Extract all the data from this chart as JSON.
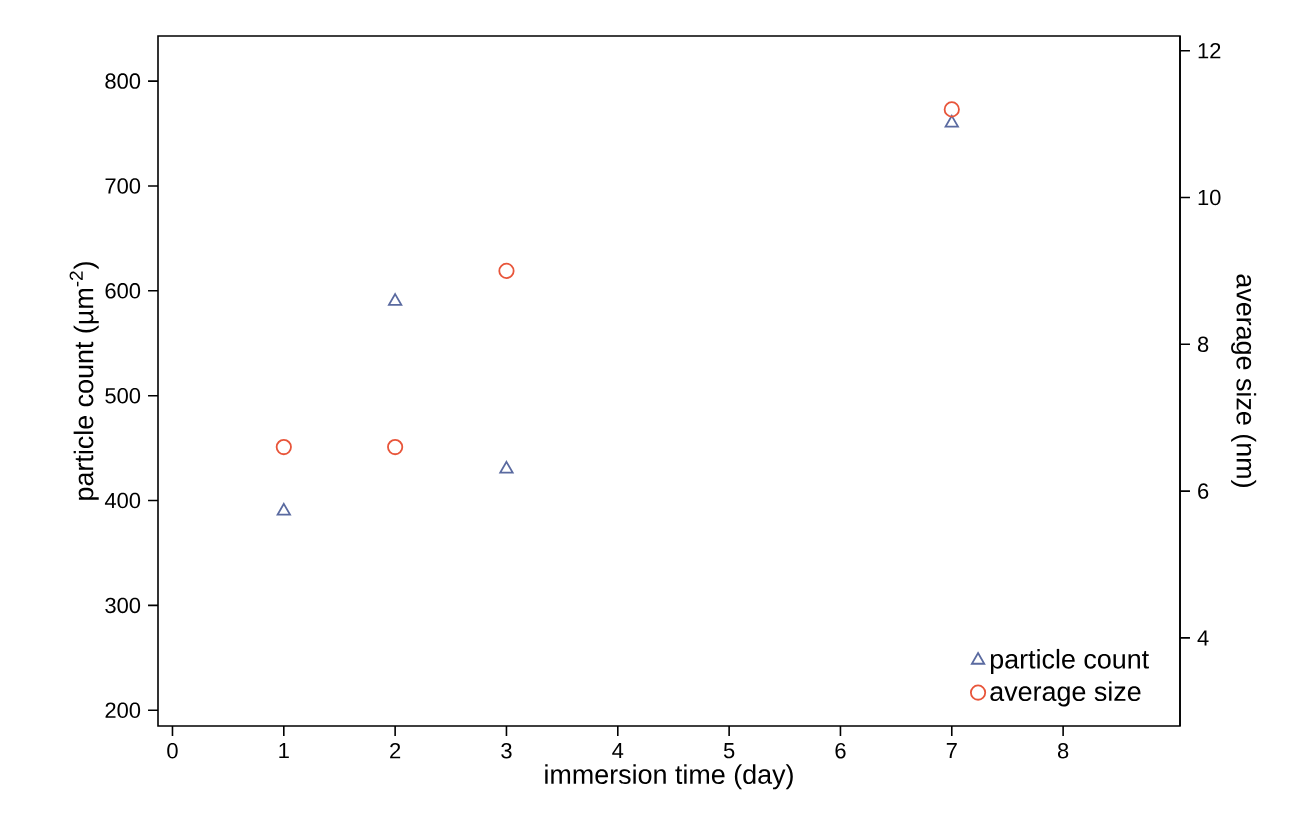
{
  "chart_data": {
    "type": "scatter",
    "xlabel": "immersion time (day)",
    "ylabel": "particle count (µm$^{-2}$)",
    "y2label": "average size (nm)",
    "x": [
      1,
      2,
      3,
      7
    ],
    "series": [
      {
        "name": "particle count",
        "color": "#5a6aa0",
        "marker": "triangle",
        "values": [
          390,
          590,
          430,
          760
        ]
      },
      {
        "name": "average size",
        "color": "#e8553a",
        "marker": "circle",
        "axis": "y2",
        "values": [
          6.6,
          6.6,
          9.0,
          11.2
        ]
      }
    ],
    "xlim": [
      -0.13,
      9.05
    ],
    "xticks": [
      0,
      1,
      2,
      3,
      4,
      5,
      6,
      7,
      8
    ],
    "ylim": [
      185,
      843
    ],
    "yticks": [
      200,
      300,
      400,
      500,
      600,
      700,
      800
    ],
    "y2lim": [
      2.8,
      12.2
    ],
    "y2ticks": [
      4,
      6,
      8,
      10,
      12
    ],
    "grid": false,
    "legend": "bottom right"
  }
}
